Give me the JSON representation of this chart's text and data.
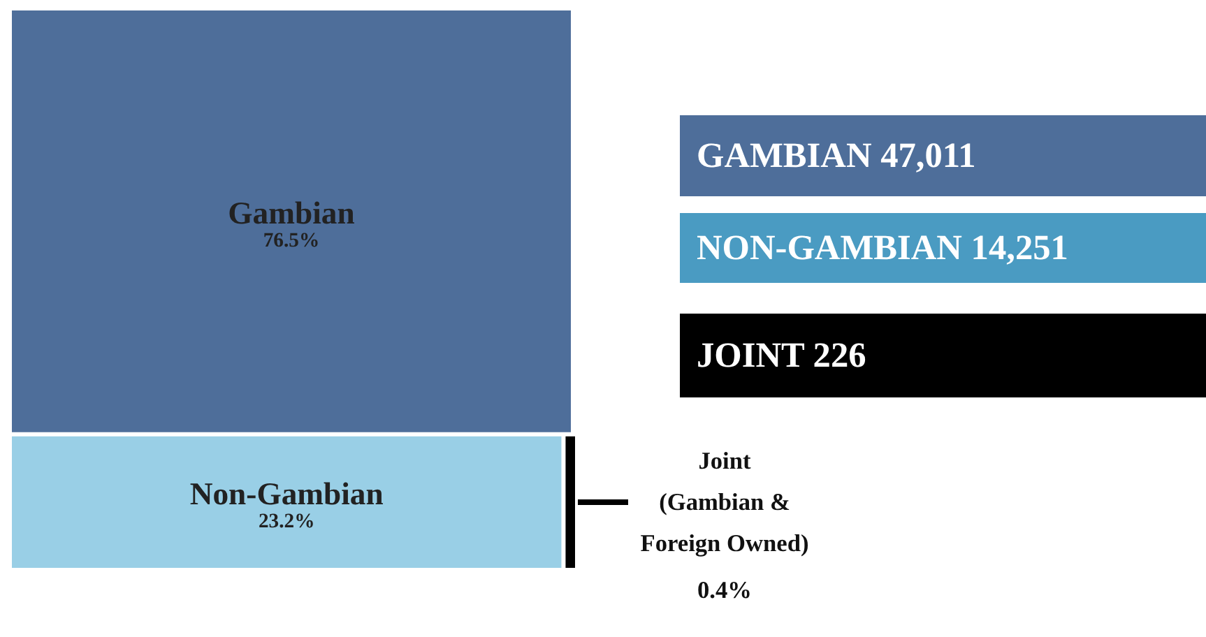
{
  "chart_data": [
    {
      "type": "other",
      "categories": [
        "Gambian",
        "Non-Gambian",
        "Joint\n(Gambian &\nForeign Owned)"
      ],
      "values": [
        76.5,
        23.2,
        0.4
      ],
      "value_labels": [
        "76.5%",
        "23.2%",
        "0.4%"
      ],
      "colors": [
        "#4e6e9a",
        "#99cfe6",
        "#000000"
      ]
    },
    {
      "type": "other",
      "annotations": [
        "GAMBIAN 47,011",
        "NON-GAMBIAN 14,251",
        "JOINT 226"
      ],
      "colors": [
        "#4e6e9a",
        "#4a9bc2",
        "#000000"
      ]
    }
  ]
}
